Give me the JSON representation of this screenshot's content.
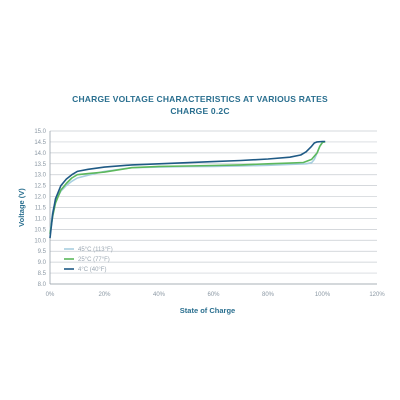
{
  "chart_data": {
    "type": "line",
    "title": "CHARGE VOLTAGE CHARACTERISTICS AT VARIOUS RATES",
    "subtitle": "CHARGE 0.2C",
    "xlabel": "State of Charge",
    "ylabel": "Voltage (V)",
    "xlim": [
      0,
      120
    ],
    "ylim": [
      8.0,
      15.0
    ],
    "x_ticks": [
      "0%",
      "20%",
      "40%",
      "60%",
      "80%",
      "100%",
      "120%"
    ],
    "y_ticks": [
      "8.0",
      "8.5",
      "9.0",
      "9.5",
      "10.0",
      "10.5",
      "11.0",
      "11.5",
      "12.0",
      "12.5",
      "13.0",
      "13.5",
      "14.0",
      "14.5",
      "15.0"
    ],
    "grid": true,
    "legend_position": "bottom-left",
    "series": [
      {
        "name": "45°C (113°F)",
        "color": "#a8cfe0",
        "x": [
          0,
          1,
          2,
          4,
          6,
          8,
          10,
          14,
          20,
          30,
          40,
          50,
          60,
          70,
          80,
          90,
          94,
          96,
          97,
          98,
          99,
          100
        ],
        "y": [
          10.4,
          11.3,
          11.8,
          12.25,
          12.5,
          12.7,
          12.85,
          12.98,
          13.15,
          13.32,
          13.35,
          13.37,
          13.38,
          13.4,
          13.43,
          13.48,
          13.5,
          13.55,
          13.7,
          14.0,
          14.3,
          14.5
        ]
      },
      {
        "name": "25°C (77°F)",
        "color": "#5cb85c",
        "x": [
          0,
          1,
          2,
          4,
          6,
          8,
          10,
          14,
          20,
          30,
          40,
          50,
          60,
          70,
          80,
          88,
          93,
          96,
          98,
          99,
          100,
          101
        ],
        "y": [
          10.3,
          11.1,
          11.7,
          12.3,
          12.6,
          12.85,
          13.0,
          13.05,
          13.12,
          13.32,
          13.38,
          13.4,
          13.42,
          13.45,
          13.5,
          13.53,
          13.56,
          13.7,
          14.0,
          14.3,
          14.48,
          14.5
        ]
      },
      {
        "name": "4°C (40°F)",
        "color": "#1f5a85",
        "x": [
          0,
          1,
          2,
          4,
          6,
          8,
          10,
          14,
          20,
          30,
          40,
          50,
          60,
          70,
          80,
          88,
          92,
          94,
          96,
          97,
          98,
          100,
          101
        ],
        "y": [
          10.1,
          11.2,
          11.9,
          12.5,
          12.8,
          13.0,
          13.15,
          13.25,
          13.35,
          13.45,
          13.5,
          13.55,
          13.6,
          13.65,
          13.72,
          13.8,
          13.9,
          14.05,
          14.3,
          14.45,
          14.5,
          14.52,
          14.52
        ]
      }
    ]
  }
}
